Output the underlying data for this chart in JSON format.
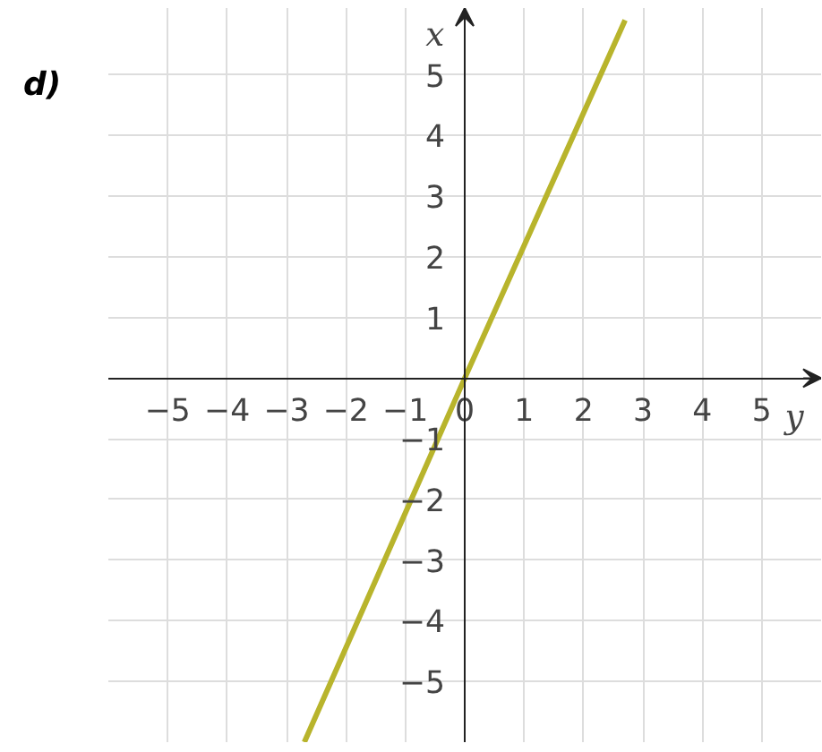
{
  "chart_data": {
    "type": "line",
    "title": "d)",
    "xlabel": "y",
    "ylabel": "x",
    "series": [
      {
        "color": "#b8b42c",
        "x": [
          -2.7,
          0,
          2.7
        ],
        "values": [
          -6.0,
          0,
          5.9
        ]
      }
    ],
    "xlim": [
      -6,
      6
    ],
    "ylim": [
      -6,
      6.1
    ],
    "xticks": [
      -5,
      -4,
      -3,
      -2,
      -1,
      0,
      1,
      2,
      3,
      4,
      5
    ],
    "yticks": [
      -5,
      -4,
      -3,
      -2,
      -1,
      {
        "value": 0,
        "label": null
      },
      1,
      2,
      3,
      4,
      5
    ],
    "grid": true,
    "line_style": "solid",
    "marker": "none"
  }
}
